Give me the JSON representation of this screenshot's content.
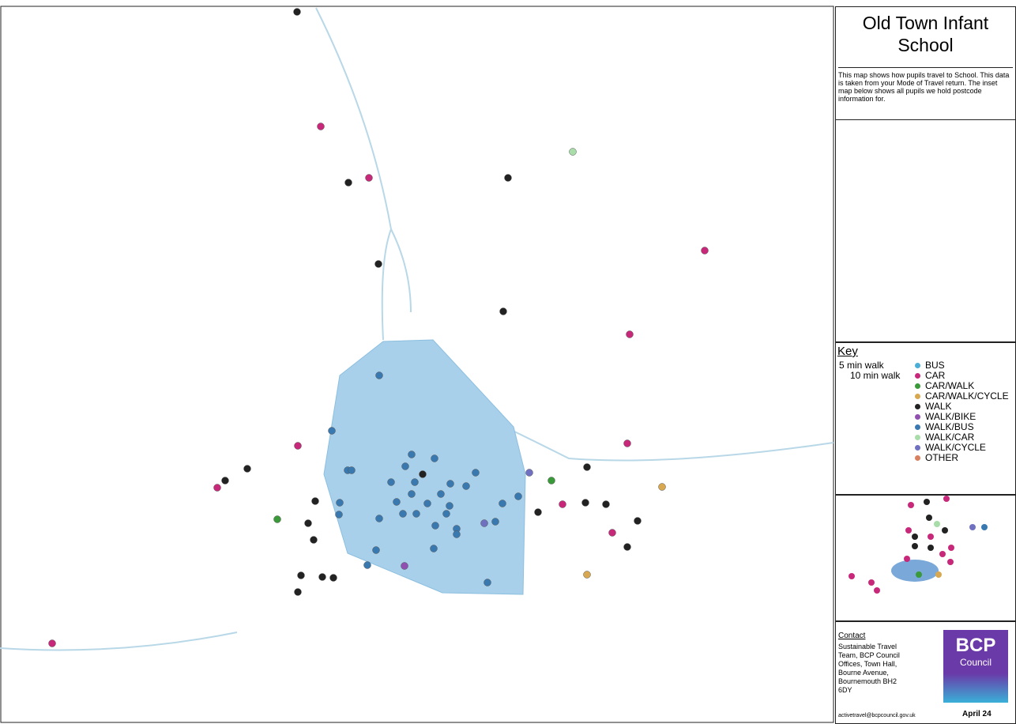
{
  "header": {
    "title": "Old Town Infant School",
    "description": "This map shows how pupils travel to School. This data is taken from your Mode of Travel return. The inset map below shows all pupils we hold postcode information for."
  },
  "key": {
    "title": "Key",
    "walk_bands": [
      "5 min walk",
      "10 min walk"
    ],
    "modes": [
      {
        "label": "BUS",
        "color": "#4aaed6"
      },
      {
        "label": "CAR",
        "color": "#c8287a"
      },
      {
        "label": "CAR/WALK",
        "color": "#3a9a3a"
      },
      {
        "label": "CAR/WALK/CYCLE",
        "color": "#d8a850"
      },
      {
        "label": "WALK",
        "color": "#222222"
      },
      {
        "label": "WALK/BIKE",
        "color": "#9050b0"
      },
      {
        "label": "WALK/BUS",
        "color": "#3a78b0"
      },
      {
        "label": "WALK/CAR",
        "color": "#a8dca8"
      },
      {
        "label": "WALK/CYCLE",
        "color": "#7070c0"
      },
      {
        "label": "OTHER",
        "color": "#d88060"
      }
    ]
  },
  "contact": {
    "title": "Contact",
    "address": "Sustainable Travel Team, BCP Council Offices, Town Hall, Bourne Avenue, Bournemouth BH2 6DY",
    "email": "activetravel@bcpcouncil.gov.uk",
    "logo": [
      "BCP",
      "Council"
    ],
    "date": "April 24"
  }
}
